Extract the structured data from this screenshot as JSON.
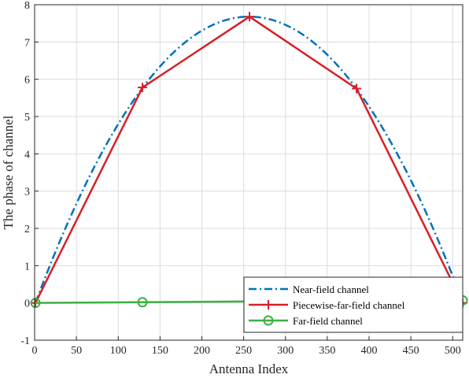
{
  "chart_data": {
    "type": "line",
    "xlabel": "Antenna Index",
    "ylabel": "The phase of channel",
    "xlim": [
      0,
      512
    ],
    "ylim": [
      -1,
      8
    ],
    "xticks": [
      0,
      50,
      100,
      150,
      200,
      250,
      300,
      350,
      400,
      450,
      500
    ],
    "yticks": [
      -1,
      0,
      1,
      2,
      3,
      4,
      5,
      6,
      7,
      8
    ],
    "grid": true,
    "legend_position": "bottom-right",
    "series": [
      {
        "name": "Near-field channel",
        "style": "dash-dot",
        "color": "#0072BD",
        "formula_points": {
          "x_start": 1,
          "x_end": 512,
          "peak_x": 256.5,
          "peak_y": 7.68,
          "end_y": 0.02
        }
      },
      {
        "name": "Piecewise-far-field channel",
        "style": "solid-plus",
        "color": "#D62027",
        "x": [
          1,
          129,
          257,
          385,
          512
        ],
        "y": [
          0.0,
          5.78,
          7.68,
          5.75,
          0.0
        ]
      },
      {
        "name": "Far-field channel",
        "style": "solid-circle",
        "color": "#3CB043",
        "x": [
          1,
          129,
          257,
          385,
          512
        ],
        "y": [
          0.0,
          0.02,
          0.04,
          0.06,
          0.07
        ]
      }
    ]
  }
}
